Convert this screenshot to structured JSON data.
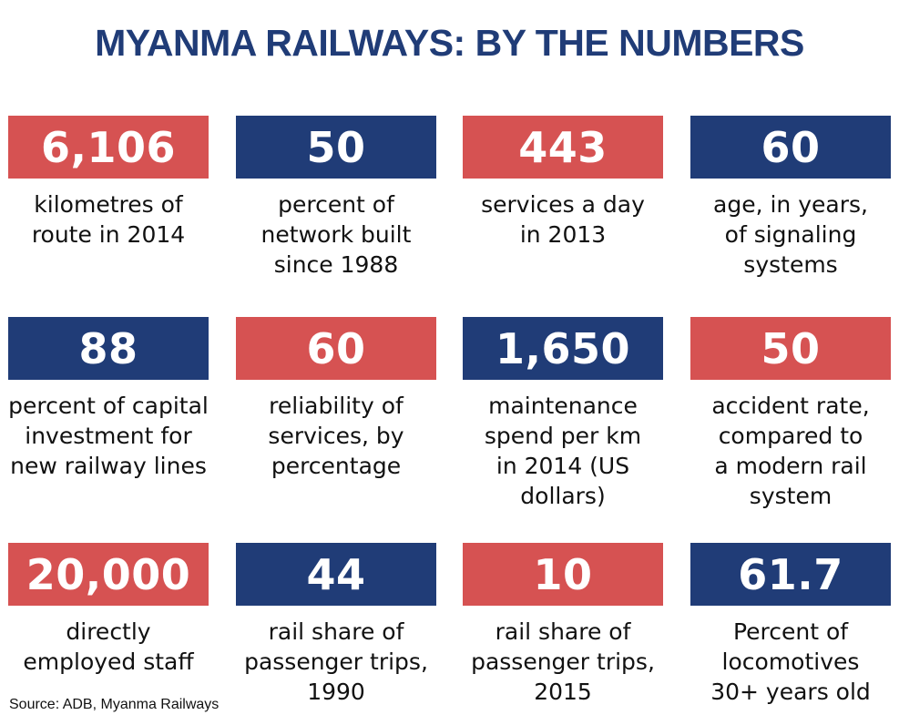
{
  "title": "MYANMA RAILWAYS: BY THE NUMBERS",
  "colors": {
    "red": "#d65252",
    "blue": "#203c77",
    "title": "#203c77"
  },
  "stats": [
    {
      "value": "6,106",
      "caption": "kilometres of\nroute in 2014",
      "color": "red"
    },
    {
      "value": "50",
      "caption": "percent of\nnetwork built\nsince 1988",
      "color": "blue"
    },
    {
      "value": "443",
      "caption": "services a day\nin 2013",
      "color": "red"
    },
    {
      "value": "60",
      "caption": "age, in years,\nof signaling\nsystems",
      "color": "blue"
    },
    {
      "value": "88",
      "caption": "percent of capital\ninvestment for\nnew railway lines",
      "color": "blue"
    },
    {
      "value": "60",
      "caption": "reliability of\nservices, by\npercentage",
      "color": "red"
    },
    {
      "value": "1,650",
      "caption": "maintenance\nspend per km\nin 2014 (US\ndollars)",
      "color": "blue"
    },
    {
      "value": "50",
      "caption": "accident rate,\ncompared to\na modern rail\nsystem",
      "color": "red"
    },
    {
      "value": "20,000",
      "caption": "directly\nemployed staff",
      "color": "red"
    },
    {
      "value": "44",
      "caption": "rail share of\npassenger trips,\n1990",
      "color": "blue"
    },
    {
      "value": "10",
      "caption": "rail share of\npassenger trips,\n2015",
      "color": "red"
    },
    {
      "value": "61.7",
      "caption": "Percent of\nlocomotives\n30+ years old",
      "color": "blue"
    }
  ],
  "source": "Source: ADB, Myanma Railways"
}
